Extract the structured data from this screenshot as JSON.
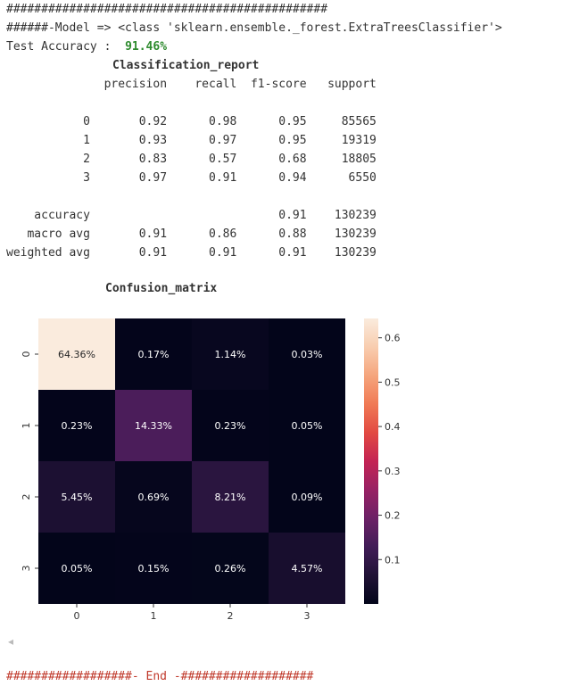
{
  "header": {
    "separator": "##############################################",
    "model_line": "######-Model => <class 'sklearn.ensemble._forest.ExtraTreesClassifier'>",
    "accuracy_label": "Test Accuracy : ",
    "accuracy_value": "91.46%"
  },
  "report": {
    "title": "Classification_report",
    "columns": [
      "precision",
      "recall",
      "f1-score",
      "support"
    ],
    "rows": [
      {
        "label": "0",
        "precision": "0.92",
        "recall": "0.98",
        "f1": "0.95",
        "support": "85565"
      },
      {
        "label": "1",
        "precision": "0.93",
        "recall": "0.97",
        "f1": "0.95",
        "support": "19319"
      },
      {
        "label": "2",
        "precision": "0.83",
        "recall": "0.57",
        "f1": "0.68",
        "support": "18805"
      },
      {
        "label": "3",
        "precision": "0.97",
        "recall": "0.91",
        "f1": "0.94",
        "support": "6550"
      }
    ],
    "summary": [
      {
        "label": "accuracy",
        "precision": "",
        "recall": "",
        "f1": "0.91",
        "support": "130239"
      },
      {
        "label": "macro avg",
        "precision": "0.91",
        "recall": "0.86",
        "f1": "0.88",
        "support": "130239"
      },
      {
        "label": "weighted avg",
        "precision": "0.91",
        "recall": "0.91",
        "f1": "0.91",
        "support": "130239"
      }
    ]
  },
  "chart_data": {
    "type": "heatmap",
    "title": "Confusion_matrix",
    "x_labels": [
      "0",
      "1",
      "2",
      "3"
    ],
    "y_labels": [
      "0",
      "1",
      "2",
      "3"
    ],
    "values": [
      [
        0.6436,
        0.0017,
        0.0114,
        0.0003
      ],
      [
        0.0023,
        0.1433,
        0.0023,
        0.0005
      ],
      [
        0.0545,
        0.0069,
        0.0821,
        0.0009
      ],
      [
        0.0005,
        0.0015,
        0.0026,
        0.0457
      ]
    ],
    "cell_labels": [
      [
        "64.36%",
        "0.17%",
        "1.14%",
        "0.03%"
      ],
      [
        "0.23%",
        "14.33%",
        "0.23%",
        "0.05%"
      ],
      [
        "5.45%",
        "0.69%",
        "8.21%",
        "0.09%"
      ],
      [
        "0.05%",
        "0.15%",
        "0.26%",
        "4.57%"
      ]
    ],
    "colorbar": {
      "range": [
        0.0,
        0.6436
      ],
      "ticks": [
        0.1,
        0.2,
        0.3,
        0.4,
        0.5,
        0.6
      ],
      "tick_labels": [
        "0.1",
        "0.2",
        "0.3",
        "0.4",
        "0.5",
        "0.6"
      ]
    },
    "colormap": "rocket"
  },
  "footer": {
    "scroll_left_icon": "◂",
    "end_line": "##################- End -###################"
  }
}
